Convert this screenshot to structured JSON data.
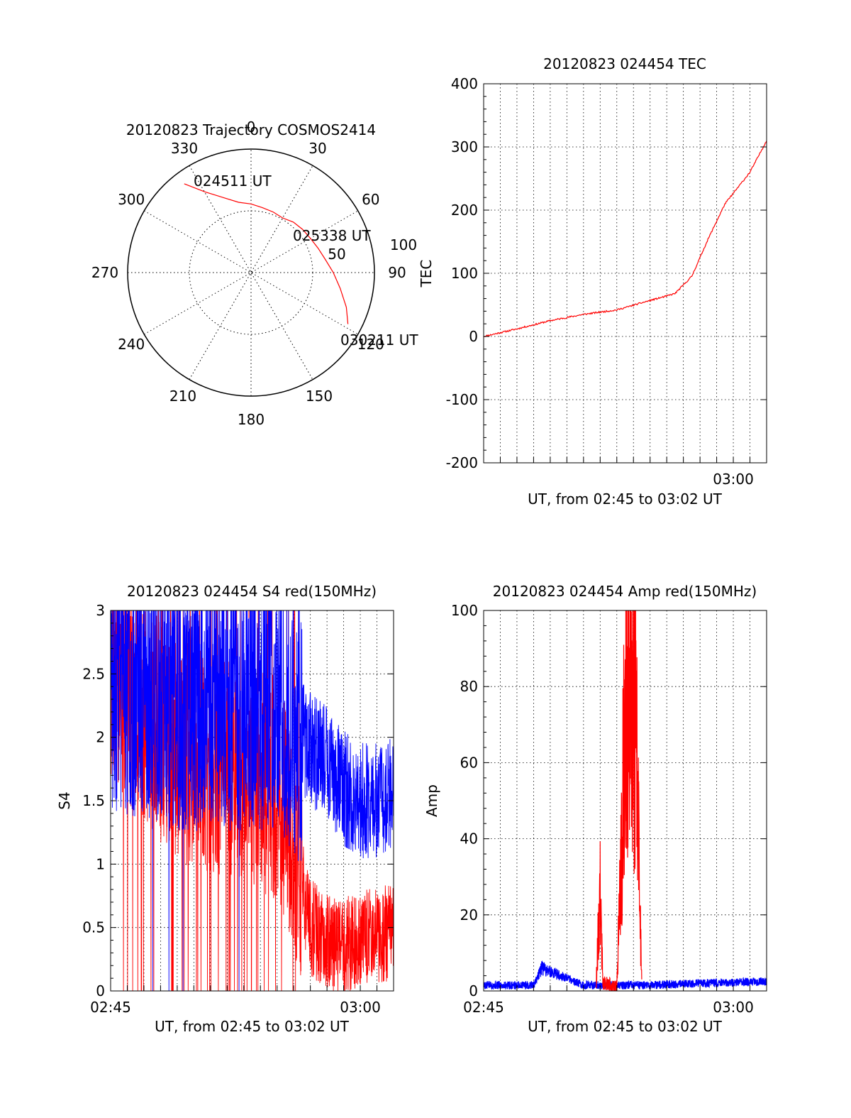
{
  "figure": {
    "background": "#ffffff",
    "colors": {
      "red": "#ff0000",
      "blue": "#0000ff",
      "axis": "#000000",
      "grid": "#000000"
    }
  },
  "chart_data": [
    {
      "type": "polar",
      "title": "20120823 Trajectory COSMOS2414",
      "azimuth_labels": [
        "0",
        "30",
        "60",
        "90",
        "120",
        "150",
        "180",
        "210",
        "240",
        "270",
        "300",
        "330"
      ],
      "radial_labels": [
        "50",
        "100"
      ],
      "point_labels": [
        "024511 UT",
        "025338 UT",
        "030211 UT"
      ],
      "trajectory": {
        "color": "#ff0000",
        "azimuth": [
          323,
          330,
          340,
          350,
          0,
          10,
          20,
          30,
          40,
          50,
          60,
          70,
          80,
          90,
          100,
          110,
          118
        ],
        "elevation": [
          9,
          22,
          32,
          38,
          40,
          42,
          43,
          44,
          42,
          41,
          40,
          38,
          35,
          30,
          24,
          16,
          10
        ]
      }
    },
    {
      "type": "line",
      "title": "20120823 024454 TEC",
      "xlabel": "UT, from 02:45 to 03:02 UT",
      "ylabel": "TEC",
      "xlim": [
        "02:45",
        "03:02"
      ],
      "ylim": [
        -200,
        400
      ],
      "yticks": [
        "-200",
        "-100",
        "0",
        "100",
        "200",
        "300",
        "400"
      ],
      "xticks": [
        "03:00"
      ],
      "grid": true,
      "series": [
        {
          "color": "#ff0000",
          "x": [
            "02:45",
            "02:47",
            "02:49",
            "02:51",
            "02:53",
            "02:55",
            "02:56",
            "02:56:30",
            "02:57:30",
            "02:58:30",
            "02:59:30",
            "03:01:00",
            "03:02:00"
          ],
          "y": [
            0,
            12,
            25,
            35,
            42,
            57,
            64,
            68,
            95,
            155,
            210,
            260,
            310
          ]
        }
      ]
    },
    {
      "type": "line",
      "title": "20120823 024454 S4 red(150MHz)",
      "xlabel": "UT, from 02:45 to 03:02 UT",
      "ylabel": "S4",
      "xlim": [
        "02:45",
        "03:02"
      ],
      "ylim": [
        0,
        3
      ],
      "yticks": [
        "0",
        "0.5",
        "1",
        "1.5",
        "2",
        "2.5",
        "3"
      ],
      "xticks": [
        "02:45",
        "03:00"
      ],
      "grid": true,
      "series": [
        {
          "color": "#ff0000",
          "x": [
            "02:45",
            "02:47",
            "02:49",
            "02:51",
            "02:53",
            "02:55",
            "02:56",
            "02:57",
            "02:58",
            "02:59",
            "03:00",
            "03:01",
            "03:02"
          ],
          "y": [
            2.5,
            2.2,
            1.9,
            1.8,
            1.7,
            1.6,
            1.2,
            0.5,
            0.4,
            0.35,
            0.4,
            0.45,
            0.45
          ]
        },
        {
          "color": "#0000ff",
          "x": [
            "02:45",
            "02:47",
            "02:49",
            "02:51",
            "02:53",
            "02:55",
            "02:56",
            "02:57",
            "02:58",
            "02:59",
            "03:00",
            "03:01",
            "03:02"
          ],
          "y": [
            2.4,
            2.4,
            2.3,
            2.3,
            2.3,
            2.3,
            2.1,
            1.9,
            1.8,
            1.6,
            1.5,
            1.5,
            1.6
          ]
        }
      ]
    },
    {
      "type": "line",
      "title": "20120823 024454 Amp red(150MHz)",
      "xlabel": "UT, from 02:45 to 03:02 UT",
      "ylabel": "Amp",
      "xlim": [
        "02:45",
        "03:02"
      ],
      "ylim": [
        0,
        100
      ],
      "yticks": [
        "0",
        "20",
        "40",
        "60",
        "80",
        "100"
      ],
      "xticks": [
        "02:45",
        "03:00"
      ],
      "grid": true,
      "series": [
        {
          "color": "#0000ff",
          "x": [
            "02:45",
            "02:48",
            "02:48:30",
            "02:51",
            "02:55",
            "02:58",
            "03:02"
          ],
          "y": [
            1.5,
            1.5,
            6,
            1.5,
            1.5,
            2,
            2.5
          ]
        },
        {
          "color": "#ff0000",
          "x": [
            "02:51:45",
            "02:52:00",
            "02:52:10",
            "02:53:00",
            "02:53:35",
            "02:53:50",
            "02:54:10",
            "02:54:30"
          ],
          "y": [
            1,
            27,
            2,
            1,
            80,
            90,
            68,
            2
          ]
        }
      ]
    }
  ]
}
